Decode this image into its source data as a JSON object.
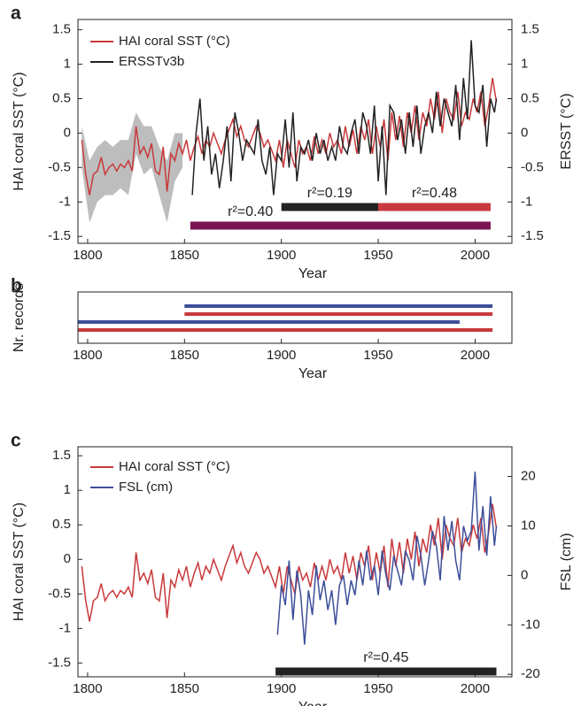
{
  "chart_data": [
    {
      "type": "line",
      "panel": "a",
      "xlabel": "Year",
      "ylabel": "HAI coral SST (°C)",
      "y2label": "ERSST (°C)",
      "xlim": [
        1795,
        2019
      ],
      "xticks": [
        1800,
        1850,
        1900,
        1950,
        2000
      ],
      "ylim": [
        -1.6,
        1.65
      ],
      "yticks": [
        -1.5,
        -1,
        -0.5,
        0,
        0.5,
        1,
        1.5
      ],
      "y2lim": [
        -1.6,
        1.65
      ],
      "y2ticks": [
        -1.5,
        -1,
        -0.5,
        0,
        0.5,
        1,
        1.5
      ],
      "uncertainty": {
        "color": "#bdbdbd",
        "x": [
          1797,
          1801,
          1805,
          1809,
          1813,
          1817,
          1821,
          1825,
          1829,
          1833,
          1837,
          1841,
          1845,
          1849
        ],
        "lower": [
          -0.5,
          -1.3,
          -1.0,
          -0.9,
          -0.9,
          -0.8,
          -0.9,
          -0.3,
          -0.6,
          -0.5,
          -0.9,
          -1.3,
          -0.7,
          -0.5
        ],
        "upper": [
          0.1,
          -0.4,
          -0.2,
          -0.1,
          -0.2,
          -0.1,
          -0.1,
          0.3,
          0.1,
          0.1,
          -0.2,
          -0.4,
          0.0,
          0.0
        ]
      },
      "series": [
        {
          "name": "HAI coral SST (°C)",
          "color": "#c8393b",
          "x": [
            1797,
            1799,
            1801,
            1803,
            1805,
            1807,
            1809,
            1811,
            1813,
            1815,
            1817,
            1819,
            1821,
            1823,
            1825,
            1827,
            1829,
            1831,
            1833,
            1835,
            1837,
            1839,
            1841,
            1843,
            1845,
            1847,
            1849,
            1851,
            1853,
            1855,
            1857,
            1859,
            1861,
            1863,
            1865,
            1867,
            1869,
            1871,
            1873,
            1875,
            1877,
            1879,
            1881,
            1883,
            1885,
            1887,
            1889,
            1891,
            1893,
            1895,
            1897,
            1899,
            1901,
            1903,
            1905,
            1907,
            1909,
            1911,
            1913,
            1915,
            1917,
            1919,
            1921,
            1923,
            1925,
            1927,
            1929,
            1931,
            1933,
            1935,
            1937,
            1939,
            1941,
            1943,
            1945,
            1947,
            1949,
            1951,
            1953,
            1955,
            1957,
            1959,
            1961,
            1963,
            1965,
            1967,
            1969,
            1971,
            1973,
            1975,
            1977,
            1979,
            1981,
            1983,
            1985,
            1987,
            1989,
            1991,
            1993,
            1995,
            1997,
            1999,
            2001,
            2003,
            2005,
            2007,
            2009,
            2011
          ],
          "values": [
            -0.1,
            -0.6,
            -0.9,
            -0.6,
            -0.55,
            -0.35,
            -0.6,
            -0.5,
            -0.45,
            -0.55,
            -0.45,
            -0.5,
            -0.4,
            -0.55,
            0.1,
            -0.3,
            -0.2,
            -0.35,
            -0.15,
            -0.55,
            -0.6,
            -0.2,
            -0.85,
            -0.3,
            -0.4,
            -0.15,
            -0.3,
            -0.1,
            -0.4,
            -0.2,
            -0.05,
            -0.3,
            -0.1,
            -0.2,
            0.0,
            -0.15,
            -0.3,
            -0.1,
            0.05,
            0.2,
            -0.05,
            0.1,
            -0.1,
            -0.2,
            -0.05,
            0.1,
            0.0,
            -0.2,
            -0.1,
            -0.25,
            -0.4,
            -0.1,
            -0.5,
            -0.1,
            -0.3,
            -0.5,
            -0.1,
            -0.3,
            -0.2,
            -0.4,
            -0.05,
            -0.3,
            -0.1,
            -0.3,
            0.0,
            -0.2,
            -0.1,
            -0.3,
            0.1,
            -0.2,
            0.05,
            -0.3,
            0.1,
            -0.1,
            0.2,
            -0.3,
            0.1,
            -0.2,
            0.2,
            -0.4,
            0.3,
            -0.1,
            0.25,
            -0.2,
            0.3,
            0.0,
            0.4,
            -0.1,
            0.3,
            0.1,
            0.5,
            0.2,
            0.6,
            0.0,
            0.5,
            0.3,
            0.2,
            0.6,
            0.1,
            0.3,
            0.2,
            0.5,
            0.3,
            0.6,
            0.1,
            0.4,
            0.8,
            0.45
          ]
        },
        {
          "name": "ERSSTv3b",
          "color": "#222222",
          "axis": "y2",
          "x": [
            1854,
            1856,
            1858,
            1860,
            1862,
            1864,
            1866,
            1868,
            1870,
            1872,
            1874,
            1876,
            1878,
            1880,
            1882,
            1884,
            1886,
            1888,
            1890,
            1892,
            1894,
            1896,
            1898,
            1900,
            1902,
            1904,
            1906,
            1908,
            1910,
            1912,
            1914,
            1916,
            1918,
            1920,
            1922,
            1924,
            1926,
            1928,
            1930,
            1932,
            1934,
            1936,
            1938,
            1940,
            1942,
            1944,
            1946,
            1948,
            1950,
            1952,
            1954,
            1956,
            1958,
            1960,
            1962,
            1964,
            1966,
            1968,
            1970,
            1972,
            1974,
            1976,
            1978,
            1980,
            1982,
            1984,
            1986,
            1988,
            1990,
            1992,
            1994,
            1996,
            1998,
            2000,
            2002,
            2004,
            2006,
            2008,
            2010,
            2011
          ],
          "values": [
            -0.9,
            0.0,
            0.5,
            -0.4,
            0.1,
            -0.6,
            -0.3,
            -0.8,
            -0.4,
            0.1,
            -0.7,
            0.3,
            0.0,
            -0.4,
            -0.1,
            -0.2,
            -0.3,
            0.2,
            -0.4,
            -0.6,
            -0.2,
            -0.9,
            -0.3,
            -0.4,
            0.2,
            -0.5,
            0.3,
            -0.7,
            -0.2,
            -0.3,
            -0.1,
            -0.4,
            0.0,
            -0.3,
            -0.1,
            -0.4,
            -0.2,
            -0.4,
            0.1,
            -0.2,
            -0.3,
            0.0,
            0.2,
            -0.3,
            0.3,
            0.1,
            -0.3,
            0.4,
            -0.7,
            0.1,
            -0.9,
            0.4,
            0.3,
            -0.1,
            0.2,
            -0.3,
            0.3,
            -0.2,
            0.4,
            -0.3,
            0.1,
            0.3,
            0.0,
            0.6,
            0.1,
            0.5,
            0.3,
            0.1,
            0.7,
            -0.1,
            0.8,
            0.2,
            1.35,
            0.4,
            0.3,
            0.7,
            -0.2,
            0.5,
            0.3,
            0.5
          ]
        }
      ],
      "periods": [
        {
          "label": "r²=0.40",
          "start": 1853,
          "end": 2008,
          "color": "#7b1450"
        },
        {
          "label": "r²=0.19",
          "start": 1900,
          "end": 1950,
          "color": "#222222"
        },
        {
          "label": "r²=0.48",
          "start": 1950,
          "end": 2008,
          "color": "#c8393b"
        }
      ]
    },
    {
      "type": "range",
      "panel": "b",
      "xlabel": "Year",
      "ylabel": "Nr. records",
      "xlim": [
        1795,
        2019
      ],
      "xticks": [
        1800,
        1850,
        1900,
        1950,
        2000
      ],
      "records": [
        {
          "start": 1850,
          "end": 2009,
          "color": "#3d4f9a"
        },
        {
          "start": 1850,
          "end": 2009,
          "color": "#c8393b"
        },
        {
          "start": 1795,
          "end": 1992,
          "color": "#3d4f9a"
        },
        {
          "start": 1795,
          "end": 2009,
          "color": "#c8393b"
        }
      ]
    },
    {
      "type": "line",
      "panel": "c",
      "xlabel": "Year",
      "ylabel": "HAI coral SST (°C)",
      "y2label": "FSL (cm)",
      "xlim": [
        1795,
        2019
      ],
      "xticks": [
        1800,
        1850,
        1900,
        1950,
        2000
      ],
      "ylim": [
        -1.7,
        1.63
      ],
      "yticks": [
        -1.5,
        -1,
        -0.5,
        0,
        0.5,
        1,
        1.5
      ],
      "y2lim": [
        -20.5,
        26
      ],
      "y2ticks": [
        -20,
        -10,
        0,
        10,
        20
      ],
      "series": [
        {
          "name": "HAI coral SST (°C)",
          "color": "#c8393b",
          "x": [
            1797,
            1799,
            1801,
            1803,
            1805,
            1807,
            1809,
            1811,
            1813,
            1815,
            1817,
            1819,
            1821,
            1823,
            1825,
            1827,
            1829,
            1831,
            1833,
            1835,
            1837,
            1839,
            1841,
            1843,
            1845,
            1847,
            1849,
            1851,
            1853,
            1855,
            1857,
            1859,
            1861,
            1863,
            1865,
            1867,
            1869,
            1871,
            1873,
            1875,
            1877,
            1879,
            1881,
            1883,
            1885,
            1887,
            1889,
            1891,
            1893,
            1895,
            1897,
            1899,
            1901,
            1903,
            1905,
            1907,
            1909,
            1911,
            1913,
            1915,
            1917,
            1919,
            1921,
            1923,
            1925,
            1927,
            1929,
            1931,
            1933,
            1935,
            1937,
            1939,
            1941,
            1943,
            1945,
            1947,
            1949,
            1951,
            1953,
            1955,
            1957,
            1959,
            1961,
            1963,
            1965,
            1967,
            1969,
            1971,
            1973,
            1975,
            1977,
            1979,
            1981,
            1983,
            1985,
            1987,
            1989,
            1991,
            1993,
            1995,
            1997,
            1999,
            2001,
            2003,
            2005,
            2007,
            2009,
            2011
          ],
          "values": [
            -0.1,
            -0.6,
            -0.9,
            -0.6,
            -0.55,
            -0.35,
            -0.6,
            -0.5,
            -0.45,
            -0.55,
            -0.45,
            -0.5,
            -0.4,
            -0.55,
            0.1,
            -0.3,
            -0.2,
            -0.35,
            -0.15,
            -0.55,
            -0.6,
            -0.2,
            -0.85,
            -0.3,
            -0.4,
            -0.15,
            -0.3,
            -0.1,
            -0.4,
            -0.2,
            -0.05,
            -0.3,
            -0.1,
            -0.2,
            0.0,
            -0.15,
            -0.3,
            -0.1,
            0.05,
            0.2,
            -0.05,
            0.1,
            -0.1,
            -0.2,
            -0.05,
            0.1,
            0.0,
            -0.2,
            -0.1,
            -0.25,
            -0.4,
            -0.1,
            -0.5,
            -0.1,
            -0.3,
            -0.5,
            -0.1,
            -0.3,
            -0.2,
            -0.4,
            -0.05,
            -0.3,
            -0.1,
            -0.3,
            0.0,
            -0.2,
            -0.1,
            -0.3,
            0.1,
            -0.2,
            0.05,
            -0.3,
            0.1,
            -0.1,
            0.2,
            -0.3,
            0.1,
            -0.2,
            0.2,
            -0.4,
            0.3,
            -0.1,
            0.25,
            -0.2,
            0.3,
            0.0,
            0.4,
            -0.1,
            0.3,
            0.1,
            0.5,
            0.2,
            0.6,
            0.0,
            0.5,
            0.3,
            0.2,
            0.6,
            0.1,
            0.3,
            0.2,
            0.5,
            0.3,
            0.6,
            0.1,
            0.4,
            0.8,
            0.45
          ]
        },
        {
          "name": "FSL (cm)",
          "color": "#3d4f9a",
          "axis": "y2",
          "x": [
            1898,
            1900,
            1902,
            1904,
            1906,
            1908,
            1910,
            1912,
            1914,
            1916,
            1918,
            1920,
            1922,
            1924,
            1926,
            1928,
            1930,
            1932,
            1934,
            1936,
            1938,
            1940,
            1942,
            1944,
            1946,
            1948,
            1950,
            1952,
            1954,
            1956,
            1958,
            1960,
            1962,
            1964,
            1966,
            1968,
            1970,
            1972,
            1974,
            1976,
            1978,
            1980,
            1982,
            1984,
            1986,
            1988,
            1990,
            1992,
            1994,
            1996,
            1998,
            2000,
            2002,
            2004,
            2006,
            2008,
            2010,
            2011
          ],
          "values": [
            -12,
            -2,
            -6,
            3,
            -9,
            1,
            -4,
            -14,
            -3,
            -8,
            2,
            -5,
            -1,
            -7,
            -3,
            -10,
            -2,
            0,
            -6,
            -1,
            -4,
            3,
            -2,
            5,
            -1,
            2,
            -4,
            5,
            0,
            -3,
            4,
            1,
            -2,
            5,
            3,
            -1,
            8,
            4,
            -2,
            3,
            9,
            6,
            -1,
            12,
            5,
            11,
            3,
            -1,
            10,
            7,
            9,
            21,
            5,
            14,
            4,
            16,
            6,
            10
          ]
        }
      ],
      "periods": [
        {
          "label": "r²=0.45",
          "start": 1897,
          "end": 2011,
          "color": "#222222"
        }
      ]
    }
  ]
}
